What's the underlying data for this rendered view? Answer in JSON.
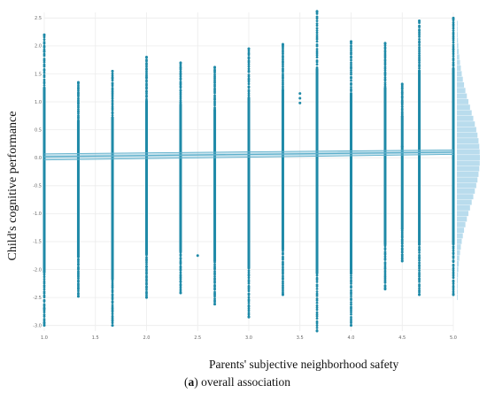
{
  "chart_data": {
    "type": "scatter",
    "xlabel": "Parents' subjective neighborhood safety",
    "ylabel": "Child's cognitive performance",
    "caption_letter": "a",
    "caption_text": " overall association",
    "xlim": [
      1.0,
      5.0
    ],
    "ylim": [
      -3.1,
      2.6
    ],
    "x_ticks": [
      1.0,
      1.5,
      2.0,
      2.5,
      3.0,
      3.5,
      4.0,
      4.5,
      5.0
    ],
    "y_ticks": [
      2.5,
      2.0,
      1.5,
      1.0,
      0.5,
      0.0,
      -0.5,
      -1.0,
      -1.5,
      -2.0,
      -2.5,
      -3.0
    ],
    "grid": true,
    "point_color": "#1f8aa8",
    "fit_color": "#5fb0cc",
    "marginal_color": "#b9dced",
    "fit_line": {
      "x": [
        1.0,
        5.0
      ],
      "y": [
        0.02,
        0.1
      ],
      "ci_lower": [
        -0.04,
        0.06
      ],
      "ci_upper": [
        0.07,
        0.14
      ]
    },
    "columns": [
      {
        "x": 1.0,
        "ymin": -3.0,
        "ymax": 2.2,
        "outliers": [
          1.9,
          -2.95,
          -2.7
        ]
      },
      {
        "x": 1.333,
        "ymin": -2.48,
        "ymax": 1.35,
        "outliers": []
      },
      {
        "x": 1.667,
        "ymin": -3.0,
        "ymax": 1.55,
        "outliers": []
      },
      {
        "x": 2.0,
        "ymin": -2.5,
        "ymax": 1.8,
        "outliers": []
      },
      {
        "x": 2.333,
        "ymin": -2.42,
        "ymax": 1.7,
        "outliers": []
      },
      {
        "x": 2.5,
        "ymin": -1.75,
        "ymax": -1.75,
        "outliers": []
      },
      {
        "x": 2.667,
        "ymin": -2.62,
        "ymax": 1.62,
        "outliers": []
      },
      {
        "x": 3.0,
        "ymin": -2.85,
        "ymax": 1.95,
        "outliers": []
      },
      {
        "x": 3.333,
        "ymin": -2.45,
        "ymax": 2.03,
        "outliers": []
      },
      {
        "x": 3.5,
        "ymin": 0.98,
        "ymax": 1.15,
        "outliers": []
      },
      {
        "x": 3.667,
        "ymin": -3.1,
        "ymax": 2.62,
        "outliers": []
      },
      {
        "x": 4.0,
        "ymin": -3.0,
        "ymax": 2.08,
        "outliers": []
      },
      {
        "x": 4.333,
        "ymin": -2.35,
        "ymax": 2.05,
        "outliers": []
      },
      {
        "x": 4.5,
        "ymin": -1.85,
        "ymax": 1.32,
        "outliers": [
          0.2
        ]
      },
      {
        "x": 4.667,
        "ymin": -2.45,
        "ymax": 2.45,
        "outliers": []
      },
      {
        "x": 5.0,
        "ymin": -2.45,
        "ymax": 2.5,
        "outliers": []
      }
    ]
  }
}
